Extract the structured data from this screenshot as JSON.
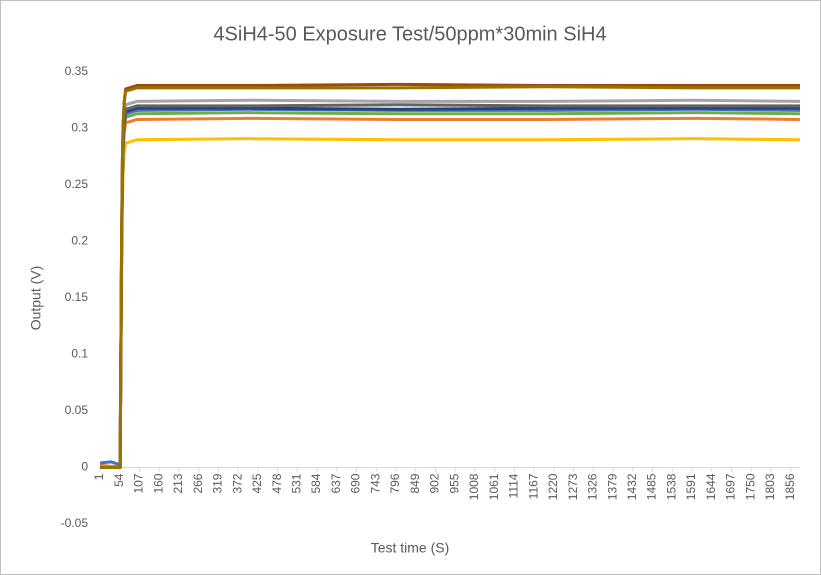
{
  "chart_data": {
    "type": "line",
    "title": "4SiH4-50 Exposure Test/50ppm*30min SiH4",
    "x_label": "Test time (S)",
    "y_label": "Output (V)",
    "x": [
      1,
      30,
      50,
      55,
      57,
      59,
      61,
      63,
      66,
      70,
      100,
      400,
      800,
      1200,
      1600,
      1881
    ],
    "series": [
      {
        "color": "#ffc000",
        "values": [
          0,
          0,
          0,
          0,
          0.087,
          0.174,
          0.232,
          0.261,
          0.278,
          0.287,
          0.29,
          0.291,
          0.29,
          0.29,
          0.291,
          0.29
        ]
      },
      {
        "color": "#ed7d31",
        "values": [
          0.002,
          0.001,
          0.001,
          0,
          0.092,
          0.185,
          0.246,
          0.277,
          0.296,
          0.305,
          0.308,
          0.309,
          0.308,
          0.308,
          0.309,
          0.308
        ]
      },
      {
        "color": "#70ad47",
        "values": [
          0,
          0,
          0,
          0,
          0.094,
          0.188,
          0.25,
          0.282,
          0.3,
          0.31,
          0.313,
          0.314,
          0.313,
          0.313,
          0.314,
          0.313
        ]
      },
      {
        "color": "#4472c4",
        "values": [
          0.004,
          0.005,
          0.003,
          0,
          0.095,
          0.19,
          0.253,
          0.284,
          0.303,
          0.313,
          0.316,
          0.317,
          0.316,
          0.316,
          0.317,
          0.316
        ]
      },
      {
        "color": "#264478",
        "values": [
          0,
          0,
          0,
          0,
          0.095,
          0.191,
          0.254,
          0.286,
          0.305,
          0.315,
          0.318,
          0.318,
          0.317,
          0.318,
          0.318,
          0.318
        ]
      },
      {
        "color": "#a5a5a5",
        "values": [
          0,
          0,
          0,
          0,
          0.097,
          0.194,
          0.259,
          0.292,
          0.311,
          0.321,
          0.324,
          0.325,
          0.324,
          0.324,
          0.325,
          0.324
        ]
      },
      {
        "color": "#636363",
        "values": [
          0,
          0,
          0,
          0,
          0.096,
          0.192,
          0.256,
          0.288,
          0.307,
          0.317,
          0.32,
          0.32,
          0.321,
          0.32,
          0.32,
          0.32
        ]
      },
      {
        "color": "#9e480e",
        "values": [
          0,
          0,
          0,
          0,
          0.101,
          0.203,
          0.27,
          0.304,
          0.324,
          0.335,
          0.338,
          0.338,
          0.339,
          0.338,
          0.338,
          0.338
        ]
      },
      {
        "color": "#997300",
        "values": [
          0,
          0,
          0,
          0,
          0.101,
          0.202,
          0.269,
          0.302,
          0.323,
          0.333,
          0.336,
          0.336,
          0.336,
          0.337,
          0.336,
          0.336
        ]
      }
    ],
    "xlim": [
      1,
      1881
    ],
    "xticks": [
      1,
      54,
      107,
      160,
      213,
      266,
      319,
      372,
      425,
      478,
      531,
      584,
      637,
      690,
      743,
      796,
      849,
      902,
      955,
      1008,
      1061,
      1114,
      1167,
      1220,
      1273,
      1326,
      1379,
      1432,
      1485,
      1538,
      1591,
      1644,
      1697,
      1750,
      1803,
      1856
    ],
    "ylim": [
      -0.05,
      0.35
    ],
    "yticks": [
      -0.05,
      0,
      0.05,
      0.1,
      0.15,
      0.2,
      0.25,
      0.3,
      0.35
    ],
    "grid": false
  }
}
